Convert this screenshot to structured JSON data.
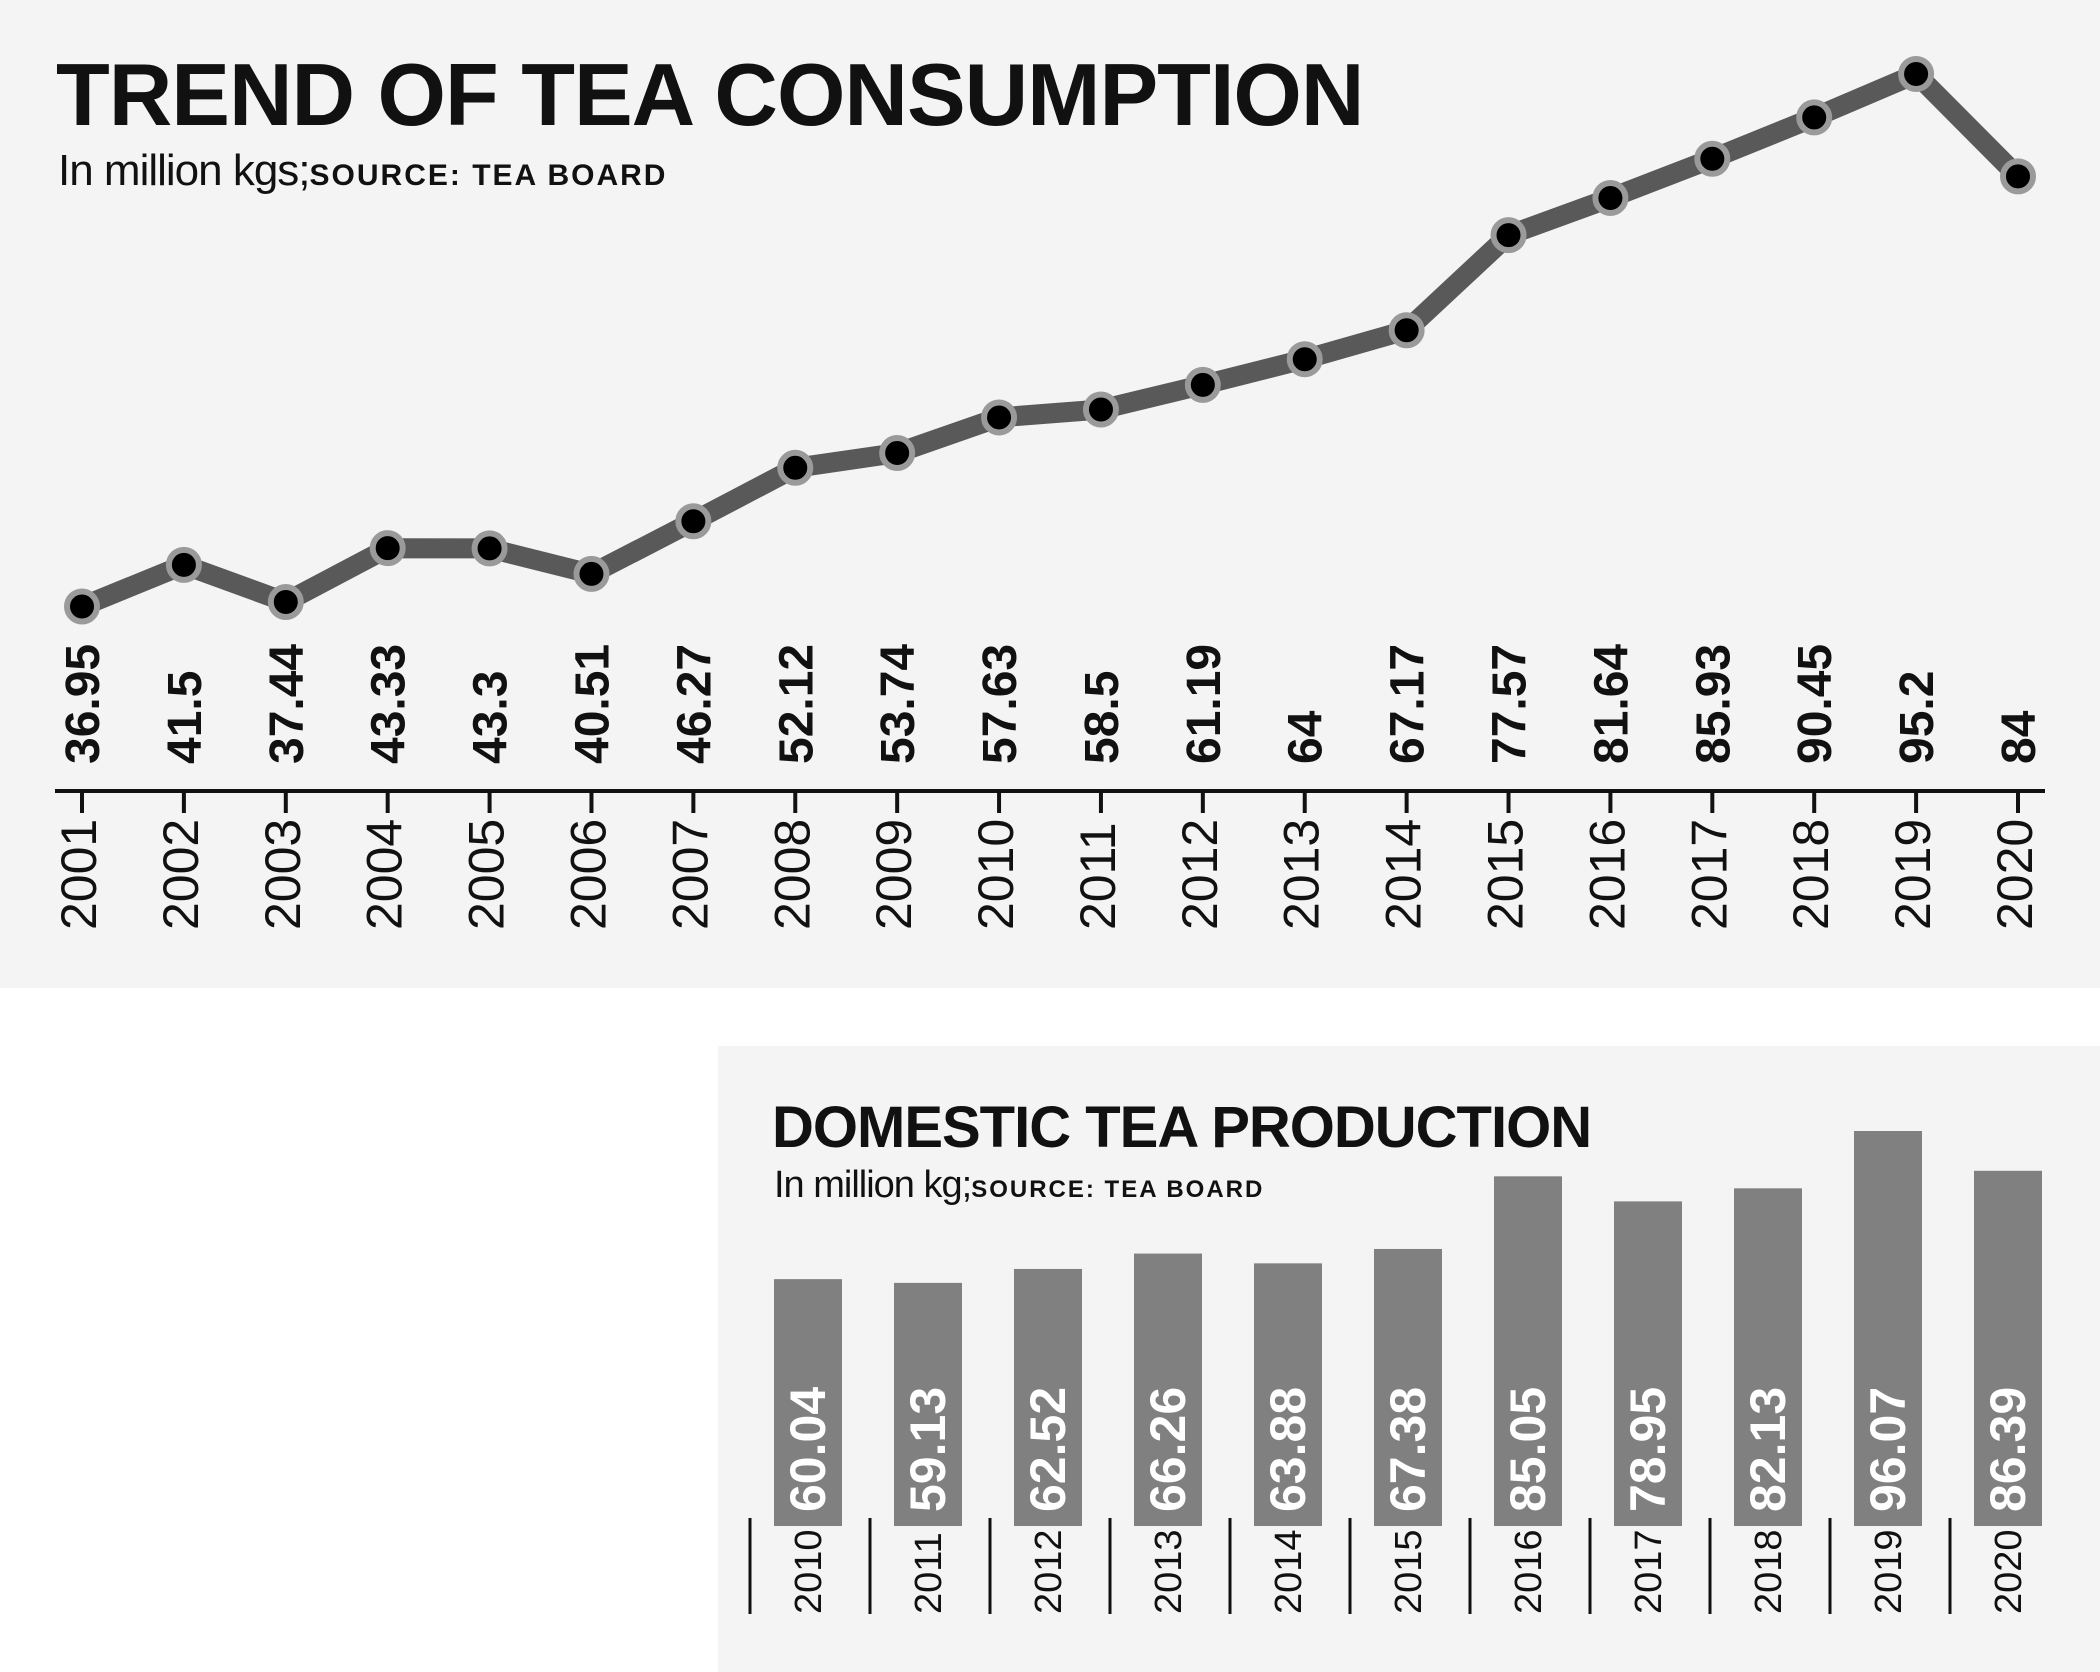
{
  "consumption": {
    "title": "TREND OF TEA CONSUMPTION",
    "unit_text": "In million kgs;",
    "source_text": "SOURCE: TEA BOARD",
    "colors": {
      "background": "#f4f4f4",
      "line": "#595959",
      "point_fill": "#000000",
      "point_stroke": "#9a9a9a",
      "text": "#111111"
    },
    "chart_data": {
      "type": "line",
      "x": [
        "2001",
        "2002",
        "2003",
        "2004",
        "2005",
        "2006",
        "2007",
        "2008",
        "2009",
        "2010",
        "2011",
        "2012",
        "2013",
        "2014",
        "2015",
        "2016",
        "2017",
        "2018",
        "2019",
        "2020"
      ],
      "values": [
        36.95,
        41.5,
        37.44,
        43.33,
        43.3,
        40.51,
        46.27,
        52.12,
        53.74,
        57.63,
        58.5,
        61.19,
        64,
        67.17,
        77.57,
        81.64,
        85.93,
        90.45,
        95.2,
        84
      ],
      "data_labels": [
        "36.95",
        "41.5",
        "37.44",
        "43.33",
        "43.3",
        "40.51",
        "46.27",
        "52.12",
        "53.74",
        "57.63",
        "58.5",
        "61.19",
        "64",
        "67.17",
        "77.57",
        "81.64",
        "85.93",
        "90.45",
        "95.2",
        "84"
      ],
      "ylim": [
        37.44,
        95.2
      ],
      "grid": false,
      "legend": "none"
    }
  },
  "production": {
    "title": "DOMESTIC TEA PRODUCTION",
    "unit_text": "In million kg;",
    "source_text": "SOURCE: TEA BOARD",
    "colors": {
      "background": "#f4f4f4",
      "bar": "#808080",
      "bar_label": "#ffffff",
      "text": "#111111"
    },
    "chart_data": {
      "type": "bar",
      "categories": [
        "2010",
        "2011",
        "2012",
        "2013",
        "2014",
        "2015",
        "2016",
        "2017",
        "2018",
        "2019",
        "2020"
      ],
      "values": [
        60.04,
        59.13,
        62.52,
        66.26,
        63.88,
        67.38,
        85.05,
        78.95,
        82.13,
        96.07,
        86.39
      ],
      "data_labels": [
        "60.04",
        "59.13",
        "62.52",
        "66.26",
        "63.88",
        "67.38",
        "85.05",
        "78.95",
        "82.13",
        "96.07",
        "86.39"
      ],
      "grid": false,
      "legend": "none"
    }
  }
}
